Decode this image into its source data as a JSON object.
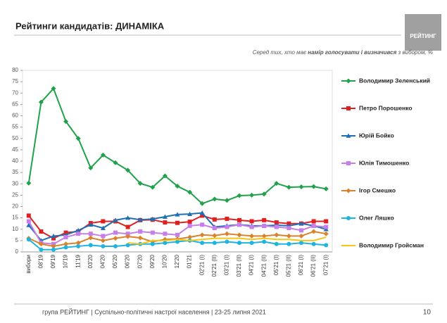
{
  "chart_data": {
    "type": "line",
    "title": "Рейтинги кандидатів: ДИНАМІКА",
    "subtitle": [
      "Серед тих, хто має ",
      "намір голосувати і визначився",
      " з вибором, %"
    ],
    "logo": "РЕЙТИНГ",
    "footer": "група РЕЙТИНГ | Суспільно-політичні настрої населення | 23-25 липня 2021",
    "page_number": "10",
    "categories": [
      "вибори",
      "08'19",
      "09'19",
      "10'19",
      "11'19",
      "03'20",
      "04'20",
      "05'20",
      "06'20",
      "07'20",
      "09'20",
      "10'20",
      "12'20",
      "01'21",
      "02'21 (I)",
      "02'21 (II)",
      "03'21 (I)",
      "03'21 (II)",
      "04'21 (I)",
      "04'21 (II)",
      "05'21 (I)",
      "05'21 (II)",
      "06'21 (I)",
      "06'21 (II)",
      "07'21 (I)"
    ],
    "ylim": [
      0,
      80
    ],
    "yticks": [
      0,
      5,
      10,
      15,
      20,
      25,
      30,
      35,
      40,
      45,
      50,
      55,
      60,
      65,
      70,
      75,
      80
    ],
    "series": [
      {
        "name": "Володимир Зеленський",
        "color": "#1fa24a",
        "marker": "diamond",
        "values": [
          30.3,
          66,
          72,
          57.5,
          50,
          37,
          42.7,
          39.3,
          36,
          30.2,
          28.5,
          33.5,
          29,
          26.3,
          21.3,
          23.3,
          22.7,
          24.8,
          25,
          25.5,
          30.2,
          28.5,
          28.7,
          28.8,
          27.8
        ]
      },
      {
        "name": "Петро Порошенко",
        "color": "#e02020",
        "marker": "square",
        "values": [
          16,
          9,
          6,
          8.5,
          9,
          12.7,
          13.5,
          13.5,
          11,
          14,
          14.2,
          13,
          12.8,
          13.3,
          16,
          14.3,
          14.6,
          14,
          13.5,
          14,
          13,
          12.5,
          12.5,
          13.5,
          13.5
        ]
      },
      {
        "name": "Юрій Бойко",
        "color": "#1f6fb5",
        "marker": "triangle",
        "values": [
          11.8,
          5,
          7,
          7.5,
          9.5,
          12,
          10.5,
          14,
          15,
          14.2,
          14.5,
          15.5,
          16.5,
          16.7,
          17.2,
          11,
          11.5,
          12,
          11.5,
          11.5,
          11.8,
          11.5,
          12.5,
          11.5,
          10
        ]
      },
      {
        "name": "Юлія Тимошенко",
        "color": "#c77ee8",
        "marker": "square",
        "values": [
          13.5,
          4,
          3.5,
          6.5,
          8,
          8,
          7,
          8.5,
          8,
          9,
          8.5,
          8,
          7.5,
          11.5,
          12,
          10.5,
          11,
          12,
          11,
          11.5,
          11,
          10.5,
          9.5,
          11.5,
          11
        ]
      },
      {
        "name": "Ігор Смешко",
        "color": "#d9822b",
        "marker": "diamond",
        "values": [
          6,
          3.5,
          2.5,
          3.5,
          4,
          6.2,
          5,
          6,
          6.8,
          6.2,
          4.5,
          5.5,
          5.7,
          6.5,
          7.5,
          7.2,
          8,
          7.5,
          7,
          7,
          7.5,
          7,
          7,
          9,
          8
        ]
      },
      {
        "name": "Олег Ляшко",
        "color": "#1fb3e0",
        "marker": "circle",
        "values": [
          5.5,
          1,
          1,
          2,
          2.5,
          3,
          2.5,
          2.5,
          3,
          3.5,
          3.5,
          4,
          4.5,
          5,
          4,
          4,
          4.5,
          4,
          4,
          4.5,
          3.5,
          3.5,
          4,
          3.5,
          3
        ]
      },
      {
        "name": "Володимир Гройсман",
        "color": "#f5c518",
        "marker": "none",
        "values": [
          null,
          null,
          null,
          null,
          null,
          null,
          null,
          null,
          4,
          3.5,
          5,
          5,
          5.5,
          5,
          5.5,
          6,
          6,
          6,
          5.5,
          6,
          5.5,
          5.5,
          5,
          5,
          6.5
        ]
      }
    ]
  }
}
